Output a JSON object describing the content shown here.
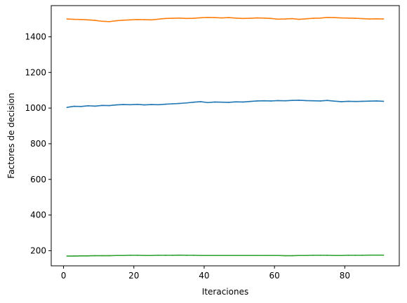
{
  "chart_data": {
    "type": "line",
    "title": "",
    "xlabel": "Iteraciones",
    "ylabel": "Factores de decision",
    "xlim": [
      -3.5,
      95.5
    ],
    "ylim": [
      115,
      1575
    ],
    "xticks": [
      0,
      20,
      40,
      60,
      80
    ],
    "yticks": [
      200,
      400,
      600,
      800,
      1000,
      1200,
      1400
    ],
    "grid": false,
    "legend": "none",
    "series": [
      {
        "color": "#1f77b4",
        "x": [
          1,
          3,
          5,
          7,
          9,
          11,
          13,
          15,
          17,
          19,
          21,
          23,
          25,
          27,
          29,
          31,
          33,
          35,
          37,
          39,
          41,
          43,
          45,
          47,
          49,
          51,
          53,
          55,
          57,
          59,
          61,
          63,
          65,
          67,
          69,
          71,
          73,
          75,
          77,
          79,
          81,
          83,
          85,
          87,
          89,
          91
        ],
        "values": [
          1004,
          1010,
          1009,
          1013,
          1011,
          1015,
          1014,
          1018,
          1020,
          1019,
          1021,
          1018,
          1020,
          1019,
          1022,
          1024,
          1026,
          1029,
          1033,
          1036,
          1031,
          1034,
          1033,
          1032,
          1035,
          1034,
          1037,
          1040,
          1041,
          1040,
          1042,
          1041,
          1043,
          1044,
          1042,
          1041,
          1040,
          1043,
          1039,
          1036,
          1038,
          1037,
          1038,
          1039,
          1040,
          1038
        ]
      },
      {
        "color": "#ff7f0e",
        "x": [
          1,
          3,
          5,
          7,
          9,
          11,
          13,
          15,
          17,
          19,
          21,
          23,
          25,
          27,
          29,
          31,
          33,
          35,
          37,
          39,
          41,
          43,
          45,
          47,
          49,
          51,
          53,
          55,
          57,
          59,
          61,
          63,
          65,
          67,
          69,
          71,
          73,
          75,
          77,
          79,
          81,
          83,
          85,
          87,
          89,
          91
        ],
        "values": [
          1500,
          1498,
          1497,
          1495,
          1492,
          1487,
          1485,
          1490,
          1493,
          1495,
          1497,
          1496,
          1495,
          1499,
          1503,
          1504,
          1505,
          1503,
          1504,
          1507,
          1509,
          1508,
          1506,
          1508,
          1505,
          1503,
          1504,
          1506,
          1505,
          1503,
          1499,
          1500,
          1502,
          1498,
          1501,
          1504,
          1505,
          1509,
          1508,
          1506,
          1505,
          1504,
          1502,
          1500,
          1501,
          1500
        ]
      },
      {
        "color": "#2ca02c",
        "x": [
          1,
          3,
          5,
          7,
          9,
          11,
          13,
          15,
          17,
          19,
          21,
          23,
          25,
          27,
          29,
          31,
          33,
          35,
          37,
          39,
          41,
          43,
          45,
          47,
          49,
          51,
          53,
          55,
          57,
          59,
          61,
          63,
          65,
          67,
          69,
          71,
          73,
          75,
          77,
          79,
          81,
          83,
          85,
          87,
          89,
          91
        ],
        "values": [
          170,
          170,
          171,
          171,
          172,
          172,
          172,
          173,
          173,
          174,
          174,
          173,
          173,
          174,
          174,
          174,
          175,
          174,
          174,
          173,
          173,
          173,
          173,
          173,
          173,
          173,
          173,
          173,
          173,
          173,
          173,
          172,
          172,
          173,
          173,
          174,
          174,
          174,
          173,
          173,
          174,
          174,
          174,
          175,
          175,
          175
        ]
      }
    ]
  }
}
